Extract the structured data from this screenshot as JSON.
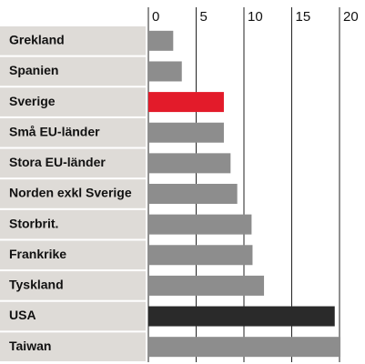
{
  "chart_data": {
    "type": "hbar",
    "categories": [
      "Grekland",
      "Spanien",
      "Sverige",
      "Små EU-länder",
      "Stora EU-länder",
      "Norden exkl Sverige",
      "Storbrit.",
      "Frankrike",
      "Tyskland",
      "USA",
      "Taiwan"
    ],
    "values": [
      2.6,
      3.5,
      7.9,
      7.9,
      8.6,
      9.3,
      10.8,
      10.9,
      12.1,
      19.5,
      20.1
    ],
    "colors": [
      "#8d8d8d",
      "#8d8d8d",
      "#e31b2a",
      "#8d8d8d",
      "#8d8d8d",
      "#8d8d8d",
      "#8d8d8d",
      "#8d8d8d",
      "#8d8d8d",
      "#2a2a2a",
      "#8d8d8d"
    ],
    "xlim": [
      0,
      20
    ],
    "xticks": [
      0,
      5,
      10,
      15,
      20
    ],
    "grid": true
  }
}
